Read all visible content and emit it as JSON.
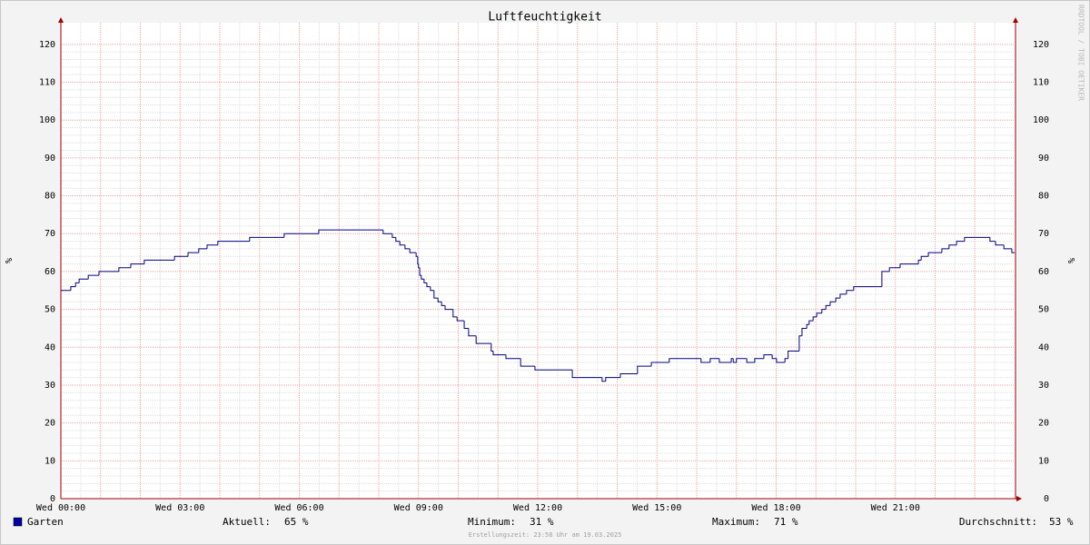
{
  "chart_data": {
    "type": "step",
    "title": "Luftfeuchtigkeit",
    "ylabel": "%",
    "y2label": "%",
    "watermark": "RRDTOOL / TOBI OETIKER",
    "footer": "Erstellungszeit: 23:58 Uhr am 19.03.2025",
    "xlim": [
      0,
      24
    ],
    "xticks": [
      {
        "value": 0,
        "label": "Wed 00:00"
      },
      {
        "value": 3,
        "label": "Wed 03:00"
      },
      {
        "value": 6,
        "label": "Wed 06:00"
      },
      {
        "value": 9,
        "label": "Wed 09:00"
      },
      {
        "value": 12,
        "label": "Wed 12:00"
      },
      {
        "value": 15,
        "label": "Wed 15:00"
      },
      {
        "value": 18,
        "label": "Wed 18:00"
      },
      {
        "value": 21,
        "label": "Wed 21:00"
      }
    ],
    "ylim": [
      0,
      125
    ],
    "yticks": [
      0,
      10,
      20,
      30,
      40,
      50,
      60,
      70,
      80,
      90,
      100,
      110,
      120
    ],
    "grid": true,
    "x": [
      0,
      0.25,
      0.37,
      0.46,
      0.69,
      0.96,
      1.46,
      1.76,
      2.1,
      2.86,
      3.2,
      3.47,
      3.68,
      3.95,
      4.75,
      5.62,
      6.49,
      8.11,
      8.34,
      8.43,
      8.53,
      8.66,
      8.78,
      8.94,
      8.98,
      9.0,
      9.03,
      9.07,
      9.14,
      9.21,
      9.3,
      9.39,
      9.49,
      9.58,
      9.67,
      9.87,
      9.97,
      10.15,
      10.26,
      10.45,
      10.83,
      10.88,
      11.2,
      11.57,
      11.93,
      12.87,
      13.62,
      13.71,
      14.08,
      14.51,
      14.86,
      15.31,
      16.11,
      16.34,
      16.57,
      16.87,
      16.92,
      17.0,
      17.26,
      17.46,
      17.69,
      17.9,
      18.01,
      18.22,
      18.3,
      18.58,
      18.65,
      18.77,
      18.83,
      18.93,
      19.02,
      19.15,
      19.25,
      19.36,
      19.5,
      19.61,
      19.77,
      19.95,
      20.66,
      20.85,
      21.12,
      21.58,
      21.65,
      21.83,
      22.17,
      22.35,
      22.54,
      22.74,
      23.38,
      23.52,
      23.73,
      23.93
    ],
    "series": [
      {
        "name": "Garten",
        "color": "#000080",
        "legend_color": "#0000a0",
        "values": [
          55,
          56,
          57,
          58,
          59,
          60,
          61,
          62,
          63,
          64,
          65,
          66,
          67,
          68,
          69,
          70,
          71,
          70,
          69,
          68,
          67,
          66,
          65,
          64,
          62,
          61,
          59,
          58,
          57,
          56,
          55,
          53,
          52,
          51,
          50,
          48,
          47,
          45,
          43,
          41,
          39,
          38,
          37,
          35,
          34,
          32,
          31,
          32,
          33,
          35,
          36,
          37,
          36,
          37,
          36,
          37,
          36,
          37,
          36,
          37,
          38,
          37,
          36,
          37,
          39,
          43,
          45,
          46,
          47,
          48,
          49,
          50,
          51,
          52,
          53,
          54,
          55,
          56,
          60,
          61,
          62,
          63,
          64,
          65,
          66,
          67,
          68,
          69,
          68,
          67,
          66,
          65
        ]
      }
    ],
    "stats": [
      {
        "label": "Aktuell:",
        "value": "65 %"
      },
      {
        "label": "Minimum:",
        "value": "31 %"
      },
      {
        "label": "Maximum:",
        "value": "71 %"
      },
      {
        "label": "Durchschnitt:",
        "value": "53 %"
      }
    ]
  }
}
